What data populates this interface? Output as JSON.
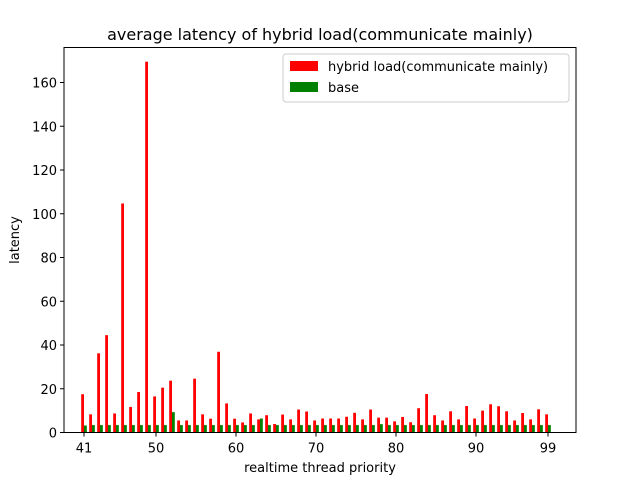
{
  "chart_data": {
    "type": "bar",
    "title": "average latency of hybrid load(communicate mainly)",
    "xlabel": "realtime thread priority",
    "ylabel": "latency",
    "x": [
      41,
      42,
      43,
      44,
      45,
      46,
      47,
      48,
      49,
      50,
      51,
      52,
      53,
      54,
      55,
      56,
      57,
      58,
      59,
      60,
      61,
      62,
      63,
      64,
      65,
      66,
      67,
      68,
      69,
      70,
      71,
      72,
      73,
      74,
      75,
      76,
      77,
      78,
      79,
      80,
      81,
      82,
      83,
      84,
      85,
      86,
      87,
      88,
      89,
      90,
      91,
      92,
      93,
      94,
      95,
      96,
      97,
      98,
      99
    ],
    "xlim": [
      38.5,
      102.5
    ],
    "ylim": [
      0,
      176
    ],
    "xticks": [
      41,
      50,
      60,
      70,
      80,
      90,
      99
    ],
    "yticks": [
      0,
      20,
      40,
      60,
      80,
      100,
      120,
      140,
      160
    ],
    "legend_position": "upper right",
    "series": [
      {
        "name": "hybrid load(communicate mainly)",
        "color": "#ff0000",
        "values": [
          17.5,
          8.3,
          36.2,
          44.5,
          8.7,
          104.7,
          11.7,
          18.5,
          169.5,
          16.5,
          20.5,
          23.7,
          5.5,
          5.5,
          24.6,
          8.3,
          6.3,
          36.9,
          13.3,
          6.3,
          4.6,
          8.7,
          6.0,
          7.9,
          3.9,
          8.2,
          6.0,
          10.5,
          9.6,
          5.5,
          6.4,
          6.4,
          6.4,
          7.2,
          9.0,
          6.0,
          10.5,
          6.8,
          6.8,
          5.1,
          7.1,
          4.7,
          11.1,
          17.6,
          7.9,
          5.5,
          9.7,
          6.0,
          12.1,
          6.4,
          10.0,
          12.9,
          12.0,
          9.7,
          5.5,
          8.9,
          6.0,
          10.6,
          8.3
        ]
      },
      {
        "name": "base",
        "color": "#008000",
        "values": [
          3.2,
          3.4,
          3.4,
          3.4,
          3.4,
          3.4,
          3.4,
          3.4,
          3.4,
          3.4,
          3.4,
          9.3,
          3.4,
          3.4,
          3.4,
          3.4,
          3.4,
          3.4,
          3.4,
          3.4,
          3.4,
          3.4,
          6.4,
          3.4,
          3.4,
          3.4,
          3.4,
          3.4,
          3.4,
          3.4,
          3.4,
          3.4,
          3.4,
          3.4,
          3.4,
          3.4,
          3.4,
          3.8,
          3.4,
          3.4,
          3.4,
          3.4,
          3.4,
          3.4,
          3.4,
          3.4,
          3.4,
          3.4,
          3.4,
          3.4,
          3.4,
          3.4,
          3.4,
          3.4,
          3.4,
          3.4,
          3.4,
          3.4,
          3.4
        ]
      }
    ]
  }
}
